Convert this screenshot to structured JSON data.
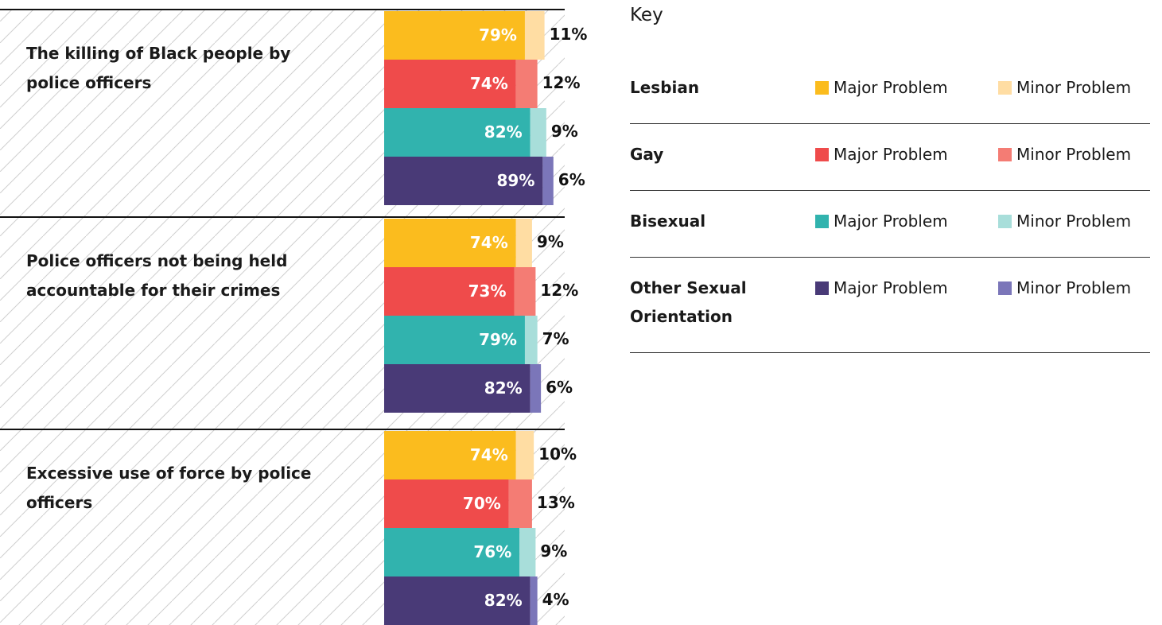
{
  "chart_data": {
    "type": "grouped-stacked-bar",
    "legend_title": "Key",
    "categories": [
      "The killing of Black people by police officers",
      "Police officers not being held accountable for their crimes",
      "Excessive use of force by police officers"
    ],
    "groups": [
      {
        "name": "Lesbian",
        "series": [
          {
            "name": "Major Problem",
            "color": "#fbbc1e",
            "values": [
              79,
              74,
              74
            ],
            "value_labels": [
              "79%",
              "74%",
              "74%"
            ]
          },
          {
            "name": "Minor Problem",
            "color": "#ffdda3",
            "values": [
              11,
              9,
              10
            ],
            "value_labels": [
              "11%",
              "9%",
              "10%"
            ]
          }
        ]
      },
      {
        "name": "Gay",
        "series": [
          {
            "name": "Major Problem",
            "color": "#ef4b4b",
            "values": [
              74,
              73,
              70
            ],
            "value_labels": [
              "74%",
              "73%",
              "70%"
            ]
          },
          {
            "name": "Minor Problem",
            "color": "#f47c74",
            "values": [
              12,
              12,
              13
            ],
            "value_labels": [
              "12%",
              "12%",
              "13%"
            ]
          }
        ]
      },
      {
        "name": "Bisexual",
        "series": [
          {
            "name": "Major Problem",
            "color": "#31b3ae",
            "values": [
              82,
              79,
              76
            ],
            "value_labels": [
              "82%",
              "79%",
              "76%"
            ]
          },
          {
            "name": "Minor Problem",
            "color": "#a8deda",
            "values": [
              9,
              7,
              9
            ],
            "value_labels": [
              "9%",
              "7%",
              "9%"
            ]
          }
        ]
      },
      {
        "name": "Other Sexual Orientation",
        "series": [
          {
            "name": "Major Problem",
            "color": "#493a77",
            "values": [
              89,
              82,
              82
            ],
            "value_labels": [
              "89%",
              "82%",
              "82%"
            ]
          },
          {
            "name": "Minor Problem",
            "color": "#7b76b9",
            "values": [
              6,
              6,
              4
            ],
            "value_labels": [
              "6%",
              "6%",
              "4%"
            ]
          }
        ]
      }
    ]
  }
}
